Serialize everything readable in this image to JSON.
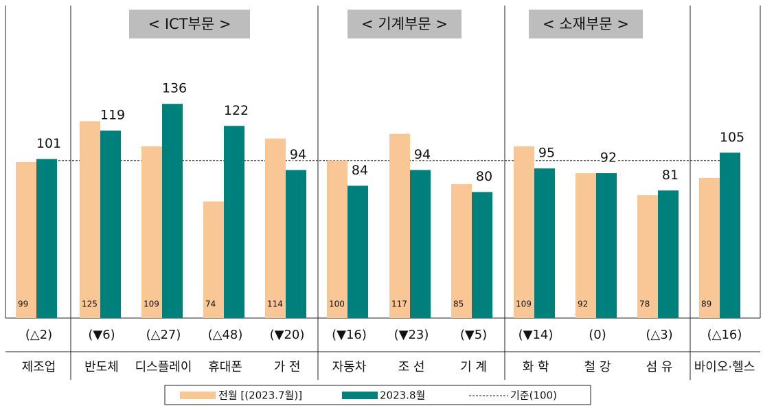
{
  "chart_data": {
    "type": "bar",
    "sections": [
      "< ICT부문 >",
      "< 기계부문 >",
      "< 소재부문 >"
    ],
    "categories": [
      "제조업",
      "반도체",
      "디스플레이",
      "휴대폰",
      "가 전",
      "자동차",
      "조 선",
      "기 계",
      "화 학",
      "철 강",
      "섬 유",
      "바이오·헬스"
    ],
    "change_labels": [
      "(△2)",
      "(▼6)",
      "(△27)",
      "(△48)",
      "(▼20)",
      "(▼16)",
      "(▼23)",
      "(▼5)",
      "(▼14)",
      "(0)",
      "(△3)",
      "(△16)"
    ],
    "series": [
      {
        "name": "전월 [(2023.7월)]",
        "color": "#f9c796",
        "values": [
          99,
          125,
          109,
          74,
          114,
          100,
          117,
          85,
          109,
          92,
          78,
          89
        ]
      },
      {
        "name": "2023.8월",
        "color": "#00807c",
        "values": [
          101,
          119,
          136,
          122,
          94,
          84,
          94,
          80,
          95,
          92,
          81,
          105
        ]
      }
    ],
    "reference": {
      "name": "기준(100)",
      "value": 100
    },
    "ylim": [
      0,
      140
    ]
  }
}
